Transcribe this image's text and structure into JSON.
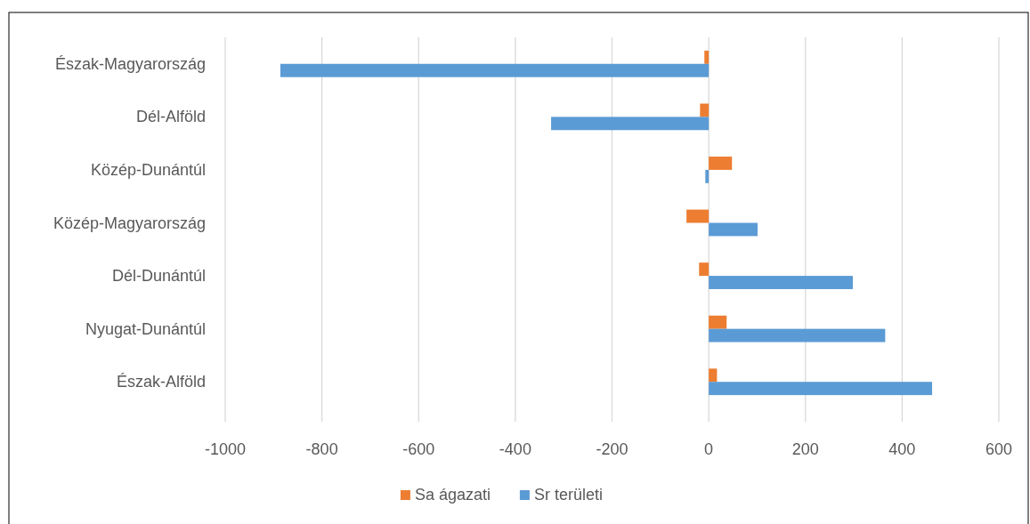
{
  "chart_data": {
    "type": "bar",
    "orientation": "horizontal",
    "categories": [
      "Észak-Magyarország",
      "Dél-Alföld",
      "Közép-Dunántúl",
      "Közép-Magyarország",
      "Dél-Dunántúl",
      "Nyugat-Dunántúl",
      "Észak-Alföld"
    ],
    "series": [
      {
        "name": "Sa ágazati",
        "color": "#ed7d31",
        "values": [
          -9,
          -18,
          48,
          -46,
          -20,
          37,
          17
        ]
      },
      {
        "name": "Sr területi",
        "color": "#5b9bd5",
        "values": [
          -886,
          -326,
          -7,
          101,
          298,
          365,
          462
        ]
      }
    ],
    "xlim": [
      -1000,
      600
    ],
    "xticks": [
      -1000,
      -800,
      -600,
      -400,
      -200,
      0,
      200,
      400,
      600
    ],
    "grid": "x",
    "legend": "bottom"
  }
}
